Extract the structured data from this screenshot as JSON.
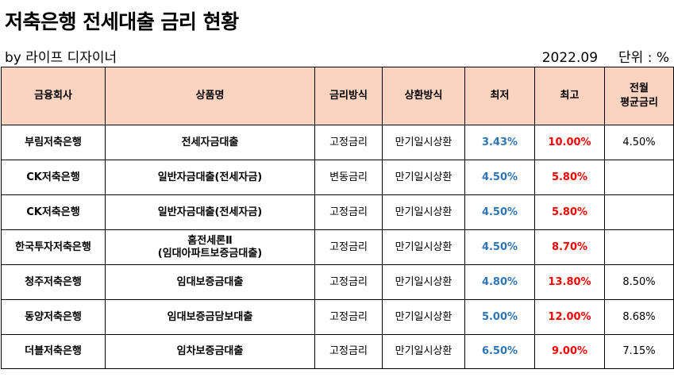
{
  "title": "저축은행 전세대출 금리 현황",
  "byline": "by 라이프 디자이너",
  "date": "2022.09",
  "unit": "단위 : %",
  "headers": {
    "company": "금융회사",
    "product": "상품명",
    "rate_type": "금리방식",
    "repayment": "상환방식",
    "min": "최저",
    "max": "최고",
    "prev_avg_line1": "전월",
    "prev_avg_line2": "평균금리"
  },
  "rows": [
    {
      "company": "부림저축은행",
      "product_line1": "전세자금대출",
      "product_line2": "",
      "rate_type": "고정금리",
      "repayment": "만기일시상환",
      "min": "3.43%",
      "max": "10.00%",
      "prev_avg": "4.50%"
    },
    {
      "company": "CK저축은행",
      "product_line1": "일반자금대출(전세자금)",
      "product_line2": "",
      "rate_type": "변동금리",
      "repayment": "만기일시상환",
      "min": "4.50%",
      "max": "5.80%",
      "prev_avg": ""
    },
    {
      "company": "CK저축은행",
      "product_line1": "일반자금대출(전세자금)",
      "product_line2": "",
      "rate_type": "고정금리",
      "repayment": "만기일시상환",
      "min": "4.50%",
      "max": "5.80%",
      "prev_avg": ""
    },
    {
      "company": "한국투자저축은행",
      "product_line1": "홈전세론Ⅱ",
      "product_line2": "(임대아파트보증금대출)",
      "rate_type": "고정금리",
      "repayment": "만기일시상환",
      "min": "4.50%",
      "max": "8.70%",
      "prev_avg": ""
    },
    {
      "company": "청주저축은행",
      "product_line1": "임대보증금대출",
      "product_line2": "",
      "rate_type": "고정금리",
      "repayment": "만기일시상환",
      "min": "4.80%",
      "max": "13.80%",
      "prev_avg": "8.50%"
    },
    {
      "company": "동양저축은행",
      "product_line1": "임대보증금담보대출",
      "product_line2": "",
      "rate_type": "고정금리",
      "repayment": "만기일시상환",
      "min": "5.00%",
      "max": "12.00%",
      "prev_avg": "8.68%"
    },
    {
      "company": "더블저축은행",
      "product_line1": "임차보증금대출",
      "product_line2": "",
      "rate_type": "고정금리",
      "repayment": "만기일시상환",
      "min": "6.50%",
      "max": "9.00%",
      "prev_avg": "7.15%"
    }
  ],
  "colors": {
    "header_bg": "#fbd4c0",
    "min_rate": "#2e75b6",
    "max_rate": "#ff0000"
  }
}
